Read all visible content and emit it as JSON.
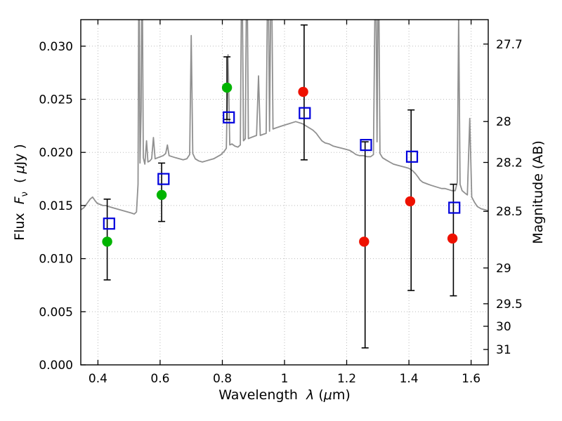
{
  "figure": {
    "xlabel": {
      "text1": "Wavelength  ",
      "sym": "λ",
      "text2": " (",
      "sym2": "μ",
      "text3": "m)"
    },
    "ylabel_left": {
      "text1": "Flux  ",
      "sym": "F",
      "sub": "ν",
      "text2": "  ( ",
      "sym2": "μ",
      "text3": "Jy )"
    },
    "ylabel_right": "Magnitude (AB)"
  },
  "chart_data": {
    "type": "line+scatter",
    "title": "",
    "xlabel": "Wavelength λ (μm)",
    "ylabel_left": "Flux Fν ( μJy )",
    "ylabel_right": "Magnitude (AB)",
    "xlim": [
      0.345,
      1.655
    ],
    "ylim": [
      0.0,
      0.0325
    ],
    "grid": true,
    "x_ticks": [
      0.4,
      0.6,
      0.8,
      1.0,
      1.2,
      1.4,
      1.6
    ],
    "x_tick_labels": [
      "0.4",
      "0.6",
      "0.8",
      "1",
      "1.2",
      "1.4",
      "1.6"
    ],
    "y_ticks_left": [
      0.0,
      0.005,
      0.01,
      0.015,
      0.02,
      0.025,
      0.03
    ],
    "y_tick_labels_left": [
      "0.000",
      "0.005",
      "0.010",
      "0.015",
      "0.020",
      "0.025",
      "0.030"
    ],
    "y_ticks_right_mag": [
      27.7,
      28,
      28.2,
      28.5,
      29,
      29.5,
      30,
      31
    ],
    "y_tick_labels_right": [
      "27.7",
      "28",
      "28.2",
      "28.5",
      "29",
      "29.5",
      "30",
      "31"
    ],
    "mag_flux_zeropoint_muJy": 23.9,
    "colors": {
      "spectrum": "#909090",
      "green": "#00b400",
      "blue": "#0000dd",
      "red": "#ee1100",
      "grid": "#bbbbbb",
      "frame": "#000000",
      "errorbar": "#000000"
    },
    "series": [
      {
        "name": "model-spectrum",
        "type": "line",
        "color": "#909090",
        "points": [
          [
            0.345,
            0.0146
          ],
          [
            0.355,
            0.0148
          ],
          [
            0.365,
            0.0152
          ],
          [
            0.375,
            0.0156
          ],
          [
            0.383,
            0.0158
          ],
          [
            0.39,
            0.0155
          ],
          [
            0.398,
            0.0152
          ],
          [
            0.407,
            0.0151
          ],
          [
            0.416,
            0.015
          ],
          [
            0.425,
            0.015
          ],
          [
            0.435,
            0.0149
          ],
          [
            0.447,
            0.0148
          ],
          [
            0.459,
            0.0147
          ],
          [
            0.471,
            0.0146
          ],
          [
            0.483,
            0.0145
          ],
          [
            0.495,
            0.0144
          ],
          [
            0.507,
            0.0143
          ],
          [
            0.517,
            0.0142
          ],
          [
            0.524,
            0.0144
          ],
          [
            0.529,
            0.017
          ],
          [
            0.532,
            0.04
          ],
          [
            0.5355,
            0.019
          ],
          [
            0.539,
            0.024
          ],
          [
            0.542,
            0.04
          ],
          [
            0.546,
            0.0195
          ],
          [
            0.551,
            0.0189
          ],
          [
            0.5565,
            0.0211
          ],
          [
            0.561,
            0.0191
          ],
          [
            0.567,
            0.0192
          ],
          [
            0.573,
            0.0194
          ],
          [
            0.5785,
            0.0214
          ],
          [
            0.584,
            0.0194
          ],
          [
            0.592,
            0.0195
          ],
          [
            0.601,
            0.0196
          ],
          [
            0.61,
            0.0197
          ],
          [
            0.618,
            0.0199
          ],
          [
            0.6235,
            0.0207
          ],
          [
            0.629,
            0.0197
          ],
          [
            0.639,
            0.0196
          ],
          [
            0.65,
            0.0195
          ],
          [
            0.662,
            0.0194
          ],
          [
            0.674,
            0.0193
          ],
          [
            0.686,
            0.0194
          ],
          [
            0.695,
            0.0198
          ],
          [
            0.7,
            0.031
          ],
          [
            0.705,
            0.0199
          ],
          [
            0.713,
            0.0194
          ],
          [
            0.724,
            0.0192
          ],
          [
            0.736,
            0.0191
          ],
          [
            0.748,
            0.0192
          ],
          [
            0.76,
            0.0193
          ],
          [
            0.772,
            0.0194
          ],
          [
            0.784,
            0.0196
          ],
          [
            0.796,
            0.0198
          ],
          [
            0.806,
            0.0201
          ],
          [
            0.813,
            0.0204
          ],
          [
            0.8185,
            0.0292
          ],
          [
            0.824,
            0.0207
          ],
          [
            0.831,
            0.0208
          ],
          [
            0.84,
            0.0206
          ],
          [
            0.85,
            0.0205
          ],
          [
            0.858,
            0.0207
          ],
          [
            0.863,
            0.04
          ],
          [
            0.868,
            0.0211
          ],
          [
            0.874,
            0.0213
          ],
          [
            0.879,
            0.04
          ],
          [
            0.884,
            0.0213
          ],
          [
            0.892,
            0.0214
          ],
          [
            0.901,
            0.0215
          ],
          [
            0.91,
            0.0216
          ],
          [
            0.9165,
            0.0272
          ],
          [
            0.922,
            0.0216
          ],
          [
            0.931,
            0.0217
          ],
          [
            0.941,
            0.0218
          ],
          [
            0.947,
            0.04
          ],
          [
            0.952,
            0.022
          ],
          [
            0.9575,
            0.04
          ],
          [
            0.963,
            0.0222
          ],
          [
            0.972,
            0.0223
          ],
          [
            0.982,
            0.0224
          ],
          [
            0.992,
            0.0225
          ],
          [
            1.003,
            0.0226
          ],
          [
            1.014,
            0.0227
          ],
          [
            1.025,
            0.0228
          ],
          [
            1.036,
            0.0229
          ],
          [
            1.047,
            0.0228
          ],
          [
            1.058,
            0.0227
          ],
          [
            1.069,
            0.0225
          ],
          [
            1.08,
            0.0223
          ],
          [
            1.091,
            0.0221
          ],
          [
            1.102,
            0.0218
          ],
          [
            1.112,
            0.0214
          ],
          [
            1.12,
            0.0211
          ],
          [
            1.13,
            0.0209
          ],
          [
            1.143,
            0.0208
          ],
          [
            1.156,
            0.0206
          ],
          [
            1.17,
            0.0205
          ],
          [
            1.184,
            0.0204
          ],
          [
            1.197,
            0.0203
          ],
          [
            1.209,
            0.0202
          ],
          [
            1.22,
            0.02
          ],
          [
            1.23,
            0.0198
          ],
          [
            1.241,
            0.0197
          ],
          [
            1.253,
            0.0197
          ],
          [
            1.265,
            0.0196
          ],
          [
            1.277,
            0.0196
          ],
          [
            1.286,
            0.0198
          ],
          [
            1.293,
            0.04
          ],
          [
            1.2975,
            0.021
          ],
          [
            1.302,
            0.04
          ],
          [
            1.307,
            0.0199
          ],
          [
            1.315,
            0.0195
          ],
          [
            1.326,
            0.0193
          ],
          [
            1.338,
            0.0191
          ],
          [
            1.35,
            0.0189
          ],
          [
            1.362,
            0.0188
          ],
          [
            1.375,
            0.0187
          ],
          [
            1.388,
            0.0186
          ],
          [
            1.4,
            0.0185
          ],
          [
            1.411,
            0.0183
          ],
          [
            1.421,
            0.018
          ],
          [
            1.429,
            0.0177
          ],
          [
            1.436,
            0.0174
          ],
          [
            1.444,
            0.0172
          ],
          [
            1.453,
            0.0171
          ],
          [
            1.462,
            0.017
          ],
          [
            1.472,
            0.0169
          ],
          [
            1.483,
            0.0168
          ],
          [
            1.494,
            0.0167
          ],
          [
            1.505,
            0.0166
          ],
          [
            1.516,
            0.0166
          ],
          [
            1.527,
            0.0165
          ],
          [
            1.538,
            0.0164
          ],
          [
            1.549,
            0.0164
          ],
          [
            1.5555,
            0.0172
          ],
          [
            1.56,
            0.033
          ],
          [
            1.5645,
            0.017
          ],
          [
            1.571,
            0.0164
          ],
          [
            1.579,
            0.0162
          ],
          [
            1.588,
            0.016
          ],
          [
            1.5955,
            0.0232
          ],
          [
            1.602,
            0.0158
          ],
          [
            1.611,
            0.0153
          ],
          [
            1.62,
            0.0149
          ],
          [
            1.632,
            0.0147
          ],
          [
            1.645,
            0.0146
          ],
          [
            1.655,
            0.0145
          ]
        ]
      },
      {
        "name": "photometry-green",
        "type": "scatter",
        "marker": "circle",
        "color": "#00b400",
        "points": [
          [
            0.43,
            0.0116
          ],
          [
            0.605,
            0.016
          ],
          [
            0.815,
            0.0261
          ]
        ]
      },
      {
        "name": "photometry-blue",
        "type": "scatter",
        "marker": "square-open",
        "color": "#0000dd",
        "points": [
          [
            0.436,
            0.0133
          ],
          [
            0.611,
            0.0175
          ],
          [
            0.821,
            0.0233
          ],
          [
            1.065,
            0.0237
          ],
          [
            1.262,
            0.0207
          ],
          [
            1.41,
            0.0196
          ],
          [
            1.546,
            0.0148
          ]
        ]
      },
      {
        "name": "photometry-red",
        "type": "scatter",
        "marker": "circle",
        "color": "#ee1100",
        "points": [
          [
            1.06,
            0.0257
          ],
          [
            1.256,
            0.0116
          ],
          [
            1.404,
            0.0154
          ],
          [
            1.54,
            0.0119
          ]
        ]
      }
    ],
    "error_bars": [
      {
        "x": 0.43,
        "ylo": 0.008,
        "yhi": 0.0156
      },
      {
        "x": 0.605,
        "ylo": 0.0135,
        "yhi": 0.019
      },
      {
        "x": 0.815,
        "ylo": 0.0231,
        "yhi": 0.029
      },
      {
        "x": 1.063,
        "ylo": 0.0193,
        "yhi": 0.032
      },
      {
        "x": 1.259,
        "ylo": 0.0016,
        "yhi": 0.021
      },
      {
        "x": 1.407,
        "ylo": 0.007,
        "yhi": 0.024
      },
      {
        "x": 1.543,
        "ylo": 0.0065,
        "yhi": 0.017
      }
    ]
  }
}
